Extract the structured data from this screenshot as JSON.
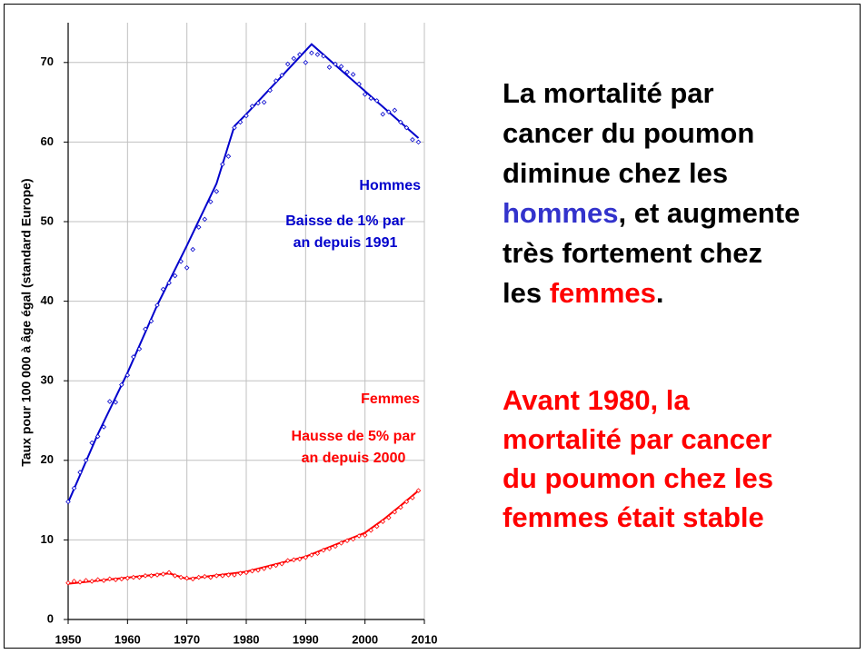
{
  "chart_data": {
    "type": "line",
    "y_label": "Taux pour 100 000 à âge égal (standard Europe)",
    "x": [
      1950,
      1951,
      1952,
      1953,
      1954,
      1955,
      1956,
      1957,
      1958,
      1959,
      1960,
      1961,
      1962,
      1963,
      1964,
      1965,
      1966,
      1967,
      1968,
      1969,
      1970,
      1971,
      1972,
      1973,
      1974,
      1975,
      1976,
      1977,
      1978,
      1979,
      1980,
      1981,
      1982,
      1983,
      1984,
      1985,
      1986,
      1987,
      1988,
      1989,
      1990,
      1991,
      1992,
      1993,
      1994,
      1995,
      1996,
      1997,
      1998,
      1999,
      2000,
      2001,
      2002,
      2003,
      2004,
      2005,
      2006,
      2007,
      2008,
      2009
    ],
    "xlim": [
      1950,
      2010
    ],
    "xticks": [
      1950,
      1960,
      1970,
      1980,
      1990,
      2000,
      2010
    ],
    "ylim": [
      0,
      75
    ],
    "yticks": [
      0,
      10,
      20,
      30,
      40,
      50,
      60,
      70
    ],
    "grid": true,
    "series": [
      {
        "name": "Hommes",
        "color": "#0000cc",
        "values": [
          14.8,
          16.5,
          18.5,
          20.0,
          22.2,
          23.0,
          24.2,
          27.4,
          27.3,
          29.5,
          30.7,
          33.0,
          34.0,
          36.5,
          37.5,
          39.5,
          41.5,
          42.3,
          43.2,
          45.0,
          44.2,
          46.5,
          49.3,
          50.3,
          52.5,
          53.8,
          57.2,
          58.2,
          61.8,
          62.5,
          63.3,
          64.5,
          64.9,
          65.0,
          66.5,
          67.7,
          68.4,
          69.8,
          70.5,
          71.0,
          70.0,
          71.2,
          71.0,
          70.8,
          69.4,
          69.8,
          69.5,
          68.8,
          68.5,
          67.3,
          66.0,
          65.5,
          65.2,
          63.5,
          63.8,
          64.0,
          62.5,
          61.8,
          60.3,
          60.0
        ],
        "fit": {
          "x": [
            1950,
            1955,
            1960,
            1965,
            1970,
            1975,
            1978,
            1980,
            1991,
            2009
          ],
          "values": [
            14.7,
            23.3,
            31.0,
            39.5,
            47.0,
            54.8,
            62.0,
            63.5,
            72.3,
            60.5
          ]
        }
      },
      {
        "name": "Femmes",
        "color": "#ff0000",
        "values": [
          4.6,
          4.8,
          4.7,
          4.9,
          4.8,
          5.0,
          4.9,
          5.1,
          5.0,
          5.1,
          5.2,
          5.3,
          5.3,
          5.5,
          5.5,
          5.6,
          5.7,
          5.9,
          5.5,
          5.3,
          5.2,
          5.1,
          5.3,
          5.4,
          5.3,
          5.5,
          5.5,
          5.6,
          5.6,
          5.8,
          5.9,
          6.1,
          6.2,
          6.4,
          6.6,
          6.8,
          7.0,
          7.4,
          7.5,
          7.6,
          7.8,
          8.1,
          8.3,
          8.7,
          8.9,
          9.2,
          9.6,
          9.9,
          10.1,
          10.5,
          10.6,
          11.2,
          11.7,
          12.3,
          12.8,
          13.5,
          14.1,
          14.8,
          15.3,
          16.2
        ],
        "fit": {
          "x": [
            1950,
            1967,
            1970,
            1980,
            1990,
            2000,
            2003,
            2006,
            2009
          ],
          "values": [
            4.5,
            5.8,
            5.1,
            6.0,
            7.9,
            10.9,
            12.5,
            14.3,
            16.2
          ]
        }
      }
    ],
    "annotations": [
      "Baisse de 1% par",
      "an depuis 1991",
      "Hausse de 5% par",
      "an depuis 2000"
    ]
  },
  "text": {
    "paragraph_1": [
      "La mortalité par",
      "cancer du poumon",
      "diminue chez les",
      "hommes",
      ", et augmente",
      "très fortement chez",
      "les ",
      "femmes",
      "."
    ],
    "paragraph_2": [
      "Avant 1980, la",
      "mortalité par cancer",
      "du poumon chez les",
      "femmes était stable"
    ]
  }
}
